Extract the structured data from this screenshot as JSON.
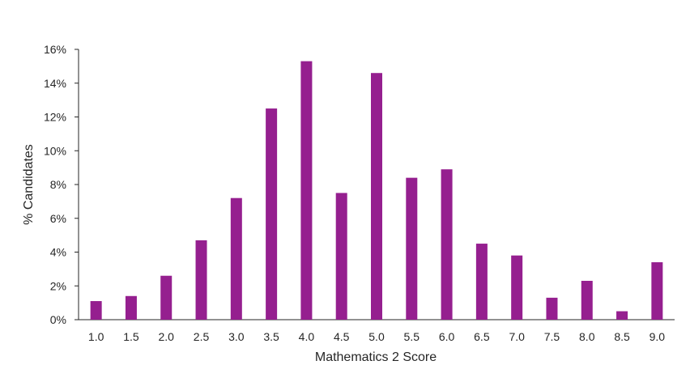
{
  "chart_data": {
    "type": "bar",
    "categories": [
      "1.0",
      "1.5",
      "2.0",
      "2.5",
      "3.0",
      "3.5",
      "4.0",
      "4.5",
      "5.0",
      "5.5",
      "6.0",
      "6.5",
      "7.0",
      "7.5",
      "8.0",
      "8.5",
      "9.0"
    ],
    "values": [
      1.1,
      1.4,
      2.6,
      4.7,
      7.2,
      12.5,
      15.3,
      7.5,
      14.6,
      8.4,
      8.9,
      4.5,
      3.8,
      1.3,
      2.3,
      0.5,
      3.4
    ],
    "value_unit": "%",
    "title": "",
    "xlabel": "Mathematics 2 Score",
    "ylabel": "% Candidates",
    "ylim": [
      0,
      16
    ],
    "yticks": [
      "0%",
      "2%",
      "4%",
      "6%",
      "8%",
      "10%",
      "12%",
      "14%",
      "16%"
    ],
    "grid": false,
    "legend": "none",
    "bar_color": "#951F8F",
    "axis_color": "#262626"
  }
}
